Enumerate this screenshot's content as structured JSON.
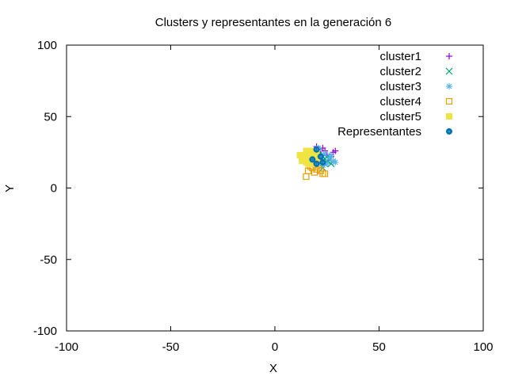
{
  "chart_data": {
    "type": "scatter",
    "title": "Clusters y representantes en la generación 6",
    "xlabel": "X",
    "ylabel": "Y",
    "xlim": [
      -100,
      100
    ],
    "ylim": [
      -100,
      100
    ],
    "xticks": [
      "-100",
      "-50",
      "0",
      "50",
      "100"
    ],
    "yticks": [
      "-100",
      "-50",
      "0",
      "50",
      "100"
    ],
    "grid": false,
    "legend_position": "top-right",
    "series": [
      {
        "name": "cluster1",
        "marker": "plus",
        "color": "#9400d3",
        "points": [
          [
            20,
            29
          ],
          [
            23,
            28
          ],
          [
            21,
            27
          ],
          [
            29,
            26
          ],
          [
            28,
            25
          ],
          [
            24,
            26
          ],
          [
            25,
            23
          ],
          [
            27,
            22
          ],
          [
            22,
            24
          ],
          [
            26,
            21
          ]
        ]
      },
      {
        "name": "cluster2",
        "marker": "cross",
        "color": "#009e73",
        "points": [
          [
            21,
            26
          ],
          [
            23,
            22
          ],
          [
            25,
            19
          ],
          [
            22,
            18
          ],
          [
            24,
            17
          ],
          [
            26,
            20
          ],
          [
            20,
            21
          ],
          [
            27,
            17
          ],
          [
            23,
            14
          ],
          [
            25,
            22
          ],
          [
            21,
            23
          ]
        ]
      },
      {
        "name": "cluster3",
        "marker": "star",
        "color": "#56b4e9",
        "points": [
          [
            21,
            28
          ],
          [
            24,
            24
          ],
          [
            26,
            21
          ],
          [
            28,
            19
          ],
          [
            25,
            17
          ],
          [
            22,
            20
          ],
          [
            23,
            16
          ],
          [
            27,
            23
          ],
          [
            20,
            18
          ],
          [
            29,
            18
          ]
        ]
      },
      {
        "name": "cluster4",
        "marker": "open-square",
        "color": "#e69f00",
        "points": [
          [
            15,
            8
          ],
          [
            23,
            10
          ],
          [
            24,
            10
          ],
          [
            16,
            12
          ],
          [
            18,
            14
          ],
          [
            20,
            13
          ],
          [
            22,
            12
          ],
          [
            17,
            15
          ],
          [
            19,
            11
          ],
          [
            21,
            16
          ],
          [
            16,
            18
          ],
          [
            18,
            19
          ]
        ]
      },
      {
        "name": "cluster5",
        "marker": "filled-square",
        "color": "#f0e442",
        "points": [
          [
            15,
            26
          ],
          [
            16,
            25
          ],
          [
            18,
            26
          ],
          [
            17,
            24
          ],
          [
            15,
            23
          ],
          [
            12,
            23
          ],
          [
            13,
            21
          ],
          [
            14,
            20
          ],
          [
            16,
            19
          ],
          [
            18,
            21
          ],
          [
            19,
            22
          ],
          [
            17,
            20
          ],
          [
            15,
            18
          ],
          [
            14,
            22
          ],
          [
            20,
            24
          ],
          [
            19,
            19
          ],
          [
            13,
            19
          ],
          [
            16,
            17
          ],
          [
            21,
            20
          ],
          [
            18,
            17
          ]
        ]
      },
      {
        "name": "Representantes",
        "marker": "circle-star",
        "color": "#0072b2",
        "points": [
          [
            20,
            27
          ],
          [
            22,
            22
          ],
          [
            23,
            18
          ],
          [
            20,
            17
          ],
          [
            18,
            20
          ]
        ]
      }
    ]
  }
}
